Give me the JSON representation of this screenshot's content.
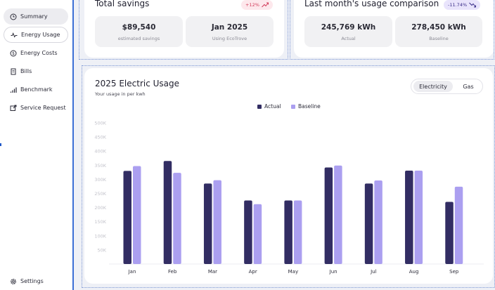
{
  "sidebar": {
    "items": [
      {
        "label": "Summary",
        "icon": "clock-icon"
      },
      {
        "label": "Energy Usage",
        "icon": "pulse-icon"
      },
      {
        "label": "Energy Costs",
        "icon": "dollar-circle-icon"
      },
      {
        "label": "Bills",
        "icon": "document-icon"
      },
      {
        "label": "Benchmark",
        "icon": "bars-icon"
      },
      {
        "label": "Service Request",
        "icon": "external-link-icon"
      }
    ],
    "settings_label": "Settings"
  },
  "savings": {
    "title": "Total savings",
    "badge": "+12%",
    "stats": [
      {
        "value": "$89,540",
        "label": "estimated savings"
      },
      {
        "value": "Jan 2025",
        "label": "Using EcoTrove"
      }
    ]
  },
  "comparison": {
    "title": "Last month's usage comparison",
    "badge": "-11.74%",
    "stats": [
      {
        "value": "245,769 kWh",
        "label": "Actual"
      },
      {
        "value": "278,450 kWh",
        "label": "Baseline"
      }
    ]
  },
  "usage": {
    "title": "2025 Electric Usage",
    "subtitle": "Your usage in per kwh",
    "tabs": [
      "Electricity",
      "Gas"
    ],
    "active_tab": "Electricity"
  },
  "colors": {
    "actual": "#322d63",
    "baseline": "#ab9ff0",
    "accent_badge_bg": "#fde8ec",
    "accent_badge_fg": "#d23b5a",
    "purple_badge_bg": "#e9e4fc",
    "purple_badge_fg": "#3b2f8a"
  },
  "chart_data": {
    "type": "bar",
    "categories": [
      "Jan",
      "Feb",
      "Mar",
      "Apr",
      "May",
      "Jun",
      "Jul",
      "Aug",
      "Sep"
    ],
    "series": [
      {
        "name": "Actual",
        "values": [
          330000,
          365000,
          285000,
          225000,
          225000,
          342000,
          285000,
          331000,
          220000
        ]
      },
      {
        "name": "Baseline",
        "values": [
          347000,
          323000,
          297000,
          212000,
          225000,
          349000,
          296000,
          331000,
          274000
        ]
      }
    ],
    "y_ticks": [
      "50K",
      "100K",
      "150K",
      "200K",
      "250K",
      "300K",
      "350K",
      "400K",
      "450K",
      "500K"
    ],
    "ylim": [
      0,
      500000
    ],
    "grid": false,
    "legend": "top-center"
  }
}
